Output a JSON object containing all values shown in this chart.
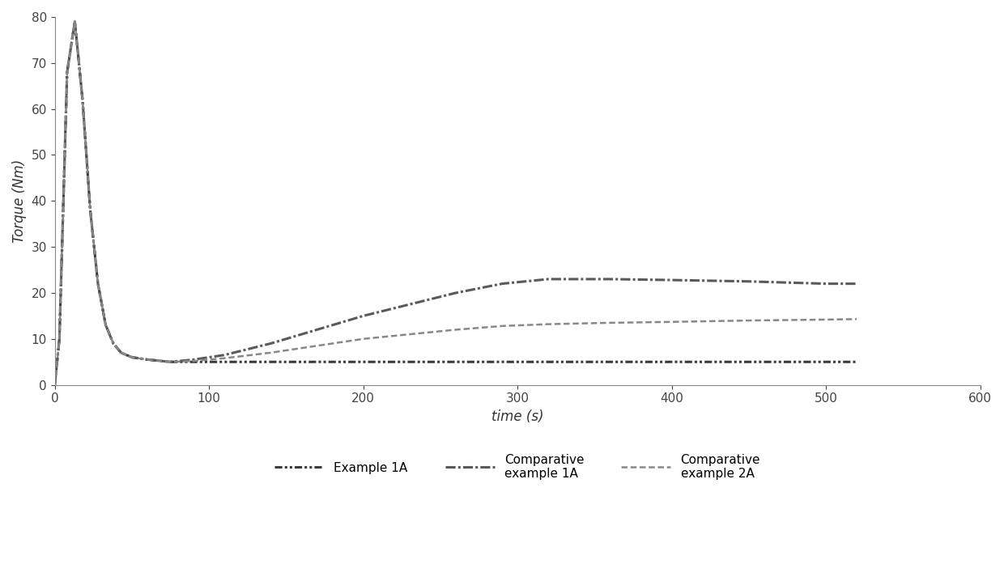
{
  "xlabel": "time (s)",
  "ylabel": "Torque (Nm)",
  "xlim": [
    0,
    600
  ],
  "ylim": [
    0,
    80
  ],
  "xticks": [
    0,
    100,
    200,
    300,
    400,
    500,
    600
  ],
  "yticks": [
    0,
    10,
    20,
    30,
    40,
    50,
    60,
    70,
    80
  ],
  "legend_labels": [
    "Example 1A",
    "Comparative\nexample 1A",
    "Comparative\nexample 2A"
  ],
  "series": {
    "example1A": {
      "x": [
        0,
        3,
        8,
        13,
        18,
        23,
        28,
        33,
        38,
        43,
        50,
        60,
        75,
        90,
        110,
        140,
        170,
        200,
        250,
        300,
        350,
        400,
        450,
        500,
        520
      ],
      "y": [
        0,
        10,
        68,
        79,
        62,
        38,
        22,
        13,
        9,
        7,
        6,
        5.5,
        5,
        5,
        5,
        5,
        5,
        5,
        5,
        5,
        5,
        5,
        5,
        5,
        5
      ]
    },
    "comp1A": {
      "x": [
        0,
        3,
        8,
        13,
        18,
        23,
        28,
        33,
        38,
        43,
        50,
        60,
        75,
        90,
        110,
        140,
        170,
        200,
        230,
        260,
        290,
        320,
        360,
        400,
        450,
        500,
        520
      ],
      "y": [
        0,
        10,
        68,
        79,
        62,
        38,
        22,
        13,
        9,
        7,
        6,
        5.5,
        5,
        5.5,
        6.5,
        9,
        12,
        15,
        17.5,
        20,
        22,
        23,
        23,
        22.8,
        22.5,
        22,
        22
      ]
    },
    "comp2A": {
      "x": [
        0,
        3,
        8,
        13,
        18,
        23,
        28,
        33,
        38,
        43,
        50,
        60,
        75,
        90,
        110,
        140,
        170,
        200,
        230,
        260,
        290,
        320,
        360,
        400,
        450,
        500,
        520
      ],
      "y": [
        0,
        10,
        68,
        79,
        62,
        38,
        22,
        13,
        9,
        7,
        6,
        5.5,
        5,
        5.2,
        5.8,
        7,
        8.5,
        10,
        11,
        12,
        12.8,
        13.2,
        13.5,
        13.7,
        14,
        14.2,
        14.3
      ]
    }
  },
  "colors": [
    "#3a3a3a",
    "#5a5a5a",
    "#888888"
  ],
  "linewidths": [
    2.2,
    2.2,
    1.8
  ],
  "dashes": [
    [
      4,
      2,
      1,
      2,
      1,
      2
    ],
    [
      4,
      2
    ],
    [
      3,
      2
    ]
  ],
  "label_fontsize": 12,
  "tick_fontsize": 11,
  "legend_fontsize": 11
}
